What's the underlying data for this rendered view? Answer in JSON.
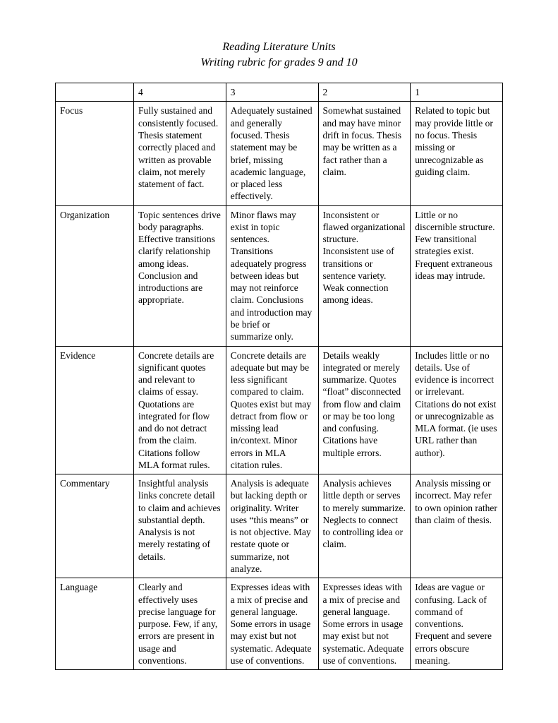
{
  "title_line1": "Reading Literature Units",
  "title_line2": "Writing rubric for grades 9 and 10",
  "table": {
    "columns": [
      "",
      "4",
      "3",
      "2",
      "1"
    ],
    "rows": [
      {
        "label": "Focus",
        "c4": "Fully sustained and consistently focused.\nThesis statement correctly placed and written as provable claim, not merely statement of fact.",
        "c3": "Adequately sustained and generally focused. Thesis statement may be brief, missing academic language, or placed less effectively.",
        "c2": "Somewhat sustained and may have minor drift in focus. Thesis may be written as a fact rather than a claim.",
        "c1": "Related to topic but may provide little or no focus. Thesis missing or unrecognizable as guiding claim."
      },
      {
        "label": "Organization",
        "c4": "Topic sentences drive body paragraphs. Effective transitions clarify relationship among ideas.\nConclusion and introductions are appropriate.",
        "c3": "Minor flaws may exist in topic sentences. Transitions adequately progress between ideas but may not reinforce claim. Conclusions and introduction may be brief or summarize only.",
        "c2": "Inconsistent or flawed organizational structure. Inconsistent use of transitions or sentence variety. Weak connection among ideas.",
        "c1": "Little or no discernible structure.\nFew transitional strategies exist. Frequent extraneous ideas may intrude."
      },
      {
        "label": "Evidence",
        "c4": "Concrete details are significant quotes and relevant to claims of essay. Quotations are integrated for flow and do not detract from the claim. Citations follow MLA format rules.",
        "c3": "Concrete details are adequate but may be less significant compared to claim. Quotes exist but may detract from flow or missing lead in/context. Minor errors in MLA citation rules.",
        "c2": "Details weakly integrated or merely summarize. Quotes “float” disconnected from flow and claim or may be too long and confusing. Citations have multiple errors.",
        "c1": "Includes little or no details.\nUse of evidence is incorrect or irrelevant. Citations do not exist or unrecognizable as MLA format. (ie uses URL rather than author)."
      },
      {
        "label": "Commentary",
        "c4": "Insightful analysis links concrete detail to claim and achieves substantial depth. Analysis is not merely restating of details.",
        "c3": "Analysis is adequate but lacking depth or originality. Writer uses “this means” or is not objective. May restate quote or summarize, not analyze.",
        "c2": "Analysis achieves little depth or serves to merely summarize. Neglects to connect to controlling idea or claim.",
        "c1": "Analysis missing or incorrect.\nMay refer to own opinion rather than claim of thesis."
      },
      {
        "label": "Language",
        "c4": "Clearly and effectively uses precise language for purpose.  Few, if any, errors are present in usage and conventions.",
        "c3": "Expresses ideas with a mix of precise and general language. Some errors in usage may exist but not systematic. Adequate use of conventions.",
        "c2": "Expresses ideas with a mix of precise and general language. Some errors in usage may exist but not systematic. Adequate use of conventions.",
        "c1": "Ideas are vague or confusing.\nLack of command of conventions. Frequent and severe errors obscure meaning."
      }
    ]
  }
}
